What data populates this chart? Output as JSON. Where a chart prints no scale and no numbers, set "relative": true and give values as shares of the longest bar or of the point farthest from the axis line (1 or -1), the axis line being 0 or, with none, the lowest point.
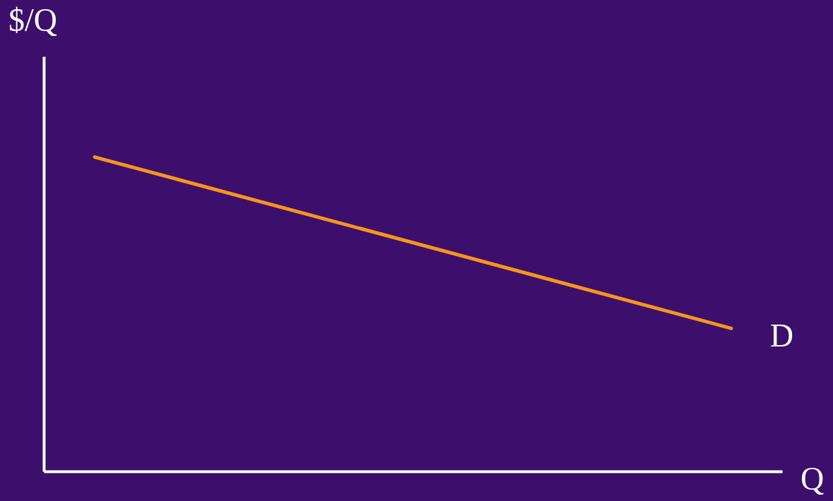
{
  "chart_data": {
    "type": "line",
    "categories": [
      null,
      null
    ],
    "relative": true,
    "xlabel": "Q",
    "ylabel": "$/Q",
    "series": [
      {
        "name": "D",
        "color": "#f7941d",
        "values": [
          1,
          0.455
        ]
      }
    ],
    "grid": false,
    "marker": "none",
    "line_style": "solid"
  }
}
